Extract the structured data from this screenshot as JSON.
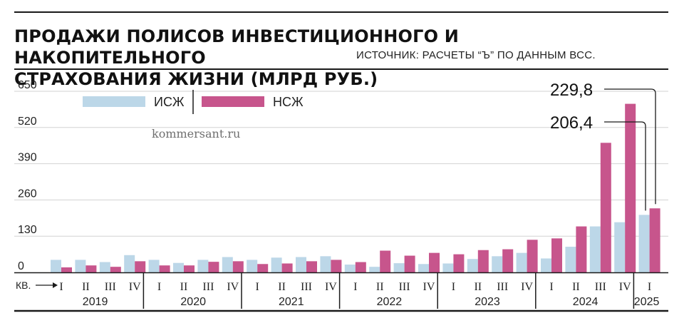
{
  "title_lines": [
    "ПРОДАЖИ ПОЛИСОВ ИНВЕСТИЦИОННОГО И НАКОПИТЕЛЬНОГО",
    "СТРАХОВАНИЯ ЖИЗНИ (МЛРД РУБ.)"
  ],
  "source": "ИСТОЧНИК: РАСЧЕТЫ “Ъ” ПО ДАННЫМ ВСС.",
  "watermark": "kommersant.ru",
  "quarter_marker": "КВ.",
  "colors": {
    "isj": "#bcd7e8",
    "nsj": "#c7558c",
    "ink": "#1a1a1a"
  },
  "chart_data": {
    "type": "bar",
    "title": "ПРОДАЖИ ПОЛИСОВ ИНВЕСТИЦИОННОГО И НАКОПИТЕЛЬНОГО СТРАХОВАНИЯ ЖИЗНИ (МЛРД РУБ.)",
    "ylim": [
      0,
      650
    ],
    "yticks": [
      0,
      130,
      260,
      390,
      520,
      650
    ],
    "ytick_labels": [
      "0",
      "130",
      "260",
      "390",
      "520",
      "650"
    ],
    "grid": true,
    "legend_position": "top-left",
    "categories": [
      "I",
      "II",
      "III",
      "IV",
      "I",
      "II",
      "III",
      "IV",
      "I",
      "II",
      "III",
      "IV",
      "I",
      "II",
      "III",
      "IV",
      "I",
      "II",
      "III",
      "IV",
      "I",
      "II",
      "III",
      "IV",
      "I"
    ],
    "years": [
      {
        "label": "2019",
        "quarters": 4
      },
      {
        "label": "2020",
        "quarters": 4
      },
      {
        "label": "2021",
        "quarters": 4
      },
      {
        "label": "2022",
        "quarters": 4
      },
      {
        "label": "2023",
        "quarters": 4
      },
      {
        "label": "2024",
        "quarters": 4
      },
      {
        "label": "2025",
        "quarters": 1
      }
    ],
    "series": [
      {
        "name": "ИСЖ",
        "values": [
          45,
          45,
          37,
          62,
          45,
          34,
          45,
          55,
          45,
          53,
          55,
          58,
          28,
          20,
          33,
          30,
          32,
          48,
          58,
          70,
          50,
          92,
          165,
          180,
          206.4
        ]
      },
      {
        "name": "НСЖ",
        "values": [
          18,
          25,
          20,
          40,
          25,
          25,
          38,
          40,
          30,
          32,
          40,
          45,
          37,
          78,
          60,
          70,
          65,
          80,
          83,
          117,
          122,
          165,
          465,
          605,
          229.8
        ]
      }
    ],
    "annotations": [
      {
        "text": "229,8",
        "series": "НСЖ",
        "index": 24
      },
      {
        "text": "206,4",
        "series": "ИСЖ",
        "index": 24
      }
    ]
  }
}
